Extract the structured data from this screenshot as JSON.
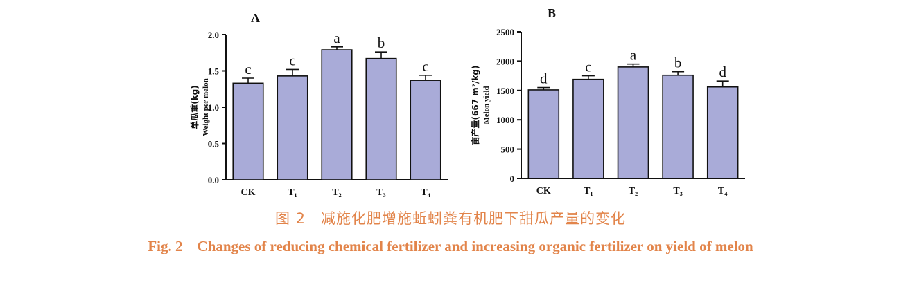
{
  "chart_data": [
    {
      "panel": "A",
      "type": "bar",
      "ylabel_cn": "单瓜重(kg)",
      "ylabel_en": "Weight per melon",
      "categories": [
        "CK",
        "T₁",
        "T₂",
        "T₃",
        "T₄"
      ],
      "values": [
        1.33,
        1.43,
        1.79,
        1.67,
        1.37
      ],
      "errors": [
        0.07,
        0.09,
        0.04,
        0.09,
        0.07
      ],
      "significance": [
        "c",
        "c",
        "a",
        "b",
        "c"
      ],
      "ylim": [
        0,
        2.0
      ],
      "yticks": [
        "0.0",
        "0.5",
        "1.0",
        "1.5",
        "2.0"
      ],
      "ytick_values": [
        0,
        0.5,
        1.0,
        1.5,
        2.0
      ],
      "bar_color": "#a9abd8"
    },
    {
      "panel": "B",
      "type": "bar",
      "ylabel_cn": "亩产量(667 m²/kg)",
      "ylabel_en": "Melon yield",
      "categories": [
        "CK",
        "T₁",
        "T₂",
        "T₃",
        "T₄"
      ],
      "values": [
        1510,
        1690,
        1900,
        1760,
        1560
      ],
      "errors": [
        40,
        60,
        50,
        60,
        100
      ],
      "significance": [
        "d",
        "c",
        "a",
        "b",
        "d"
      ],
      "ylim": [
        0,
        2500
      ],
      "yticks": [
        "0",
        "500",
        "1000",
        "1500",
        "2000",
        "2500"
      ],
      "ytick_values": [
        0,
        500,
        1000,
        1500,
        2000,
        2500
      ],
      "bar_color": "#a9abd8"
    }
  ],
  "caption": {
    "cn": "图 2　减施化肥增施蚯蚓粪有机肥下甜瓜产量的变化",
    "en": "Fig. 2　Changes of reducing chemical fertilizer and increasing organic fertilizer on yield of melon"
  },
  "colors": {
    "caption": "#e2844a",
    "bar": "#a9abd8",
    "axis": "#111111"
  }
}
